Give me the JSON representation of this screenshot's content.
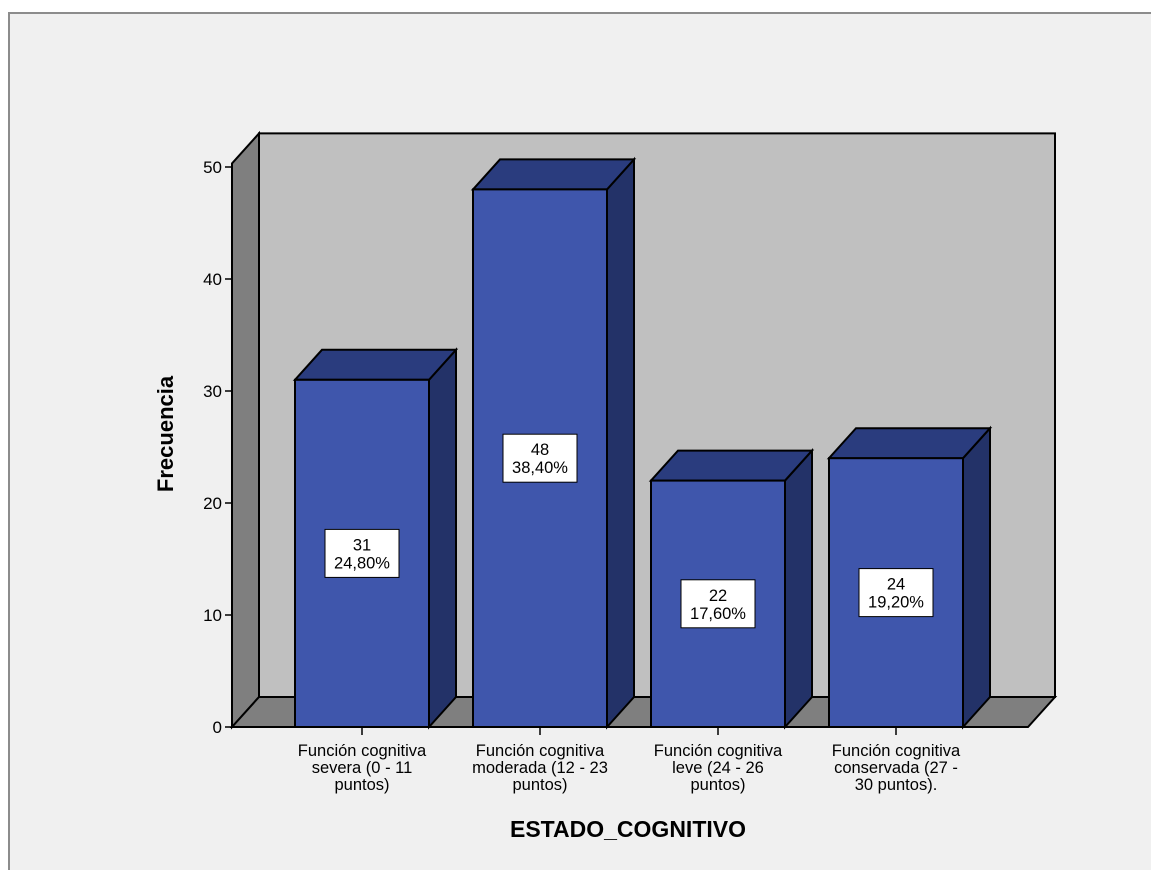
{
  "chart_data": {
    "type": "bar",
    "style": "3d",
    "categories": [
      [
        "Función cognitiva",
        "severa (0 - 11",
        "puntos)"
      ],
      [
        "Función cognitiva",
        "moderada (12 - 23",
        "puntos)"
      ],
      [
        "Función cognitiva",
        "leve (24 - 26",
        "puntos)"
      ],
      [
        "Función cognitiva",
        "conservada (27 -",
        "30 puntos)."
      ]
    ],
    "values": [
      31,
      48,
      22,
      24
    ],
    "data_labels": [
      [
        "31",
        "24,80%"
      ],
      [
        "48",
        "38,40%"
      ],
      [
        "22",
        "17,60%"
      ],
      [
        "24",
        "19,20%"
      ]
    ],
    "xlabel": "ESTADO_COGNITIVO",
    "ylabel": "Frecuencia",
    "ylim": [
      0,
      53
    ],
    "yticks": [
      0,
      10,
      20,
      30,
      40,
      50
    ],
    "grid": false,
    "colors": {
      "bar_front": "#3f56ac",
      "bar_top": "#2a3c7e",
      "bar_side": "#233268",
      "back_wall": "#c0c0c0",
      "side_wall": "#7f7f7f",
      "floor": "#7f7f7f",
      "background": "#f0f0f0"
    }
  }
}
